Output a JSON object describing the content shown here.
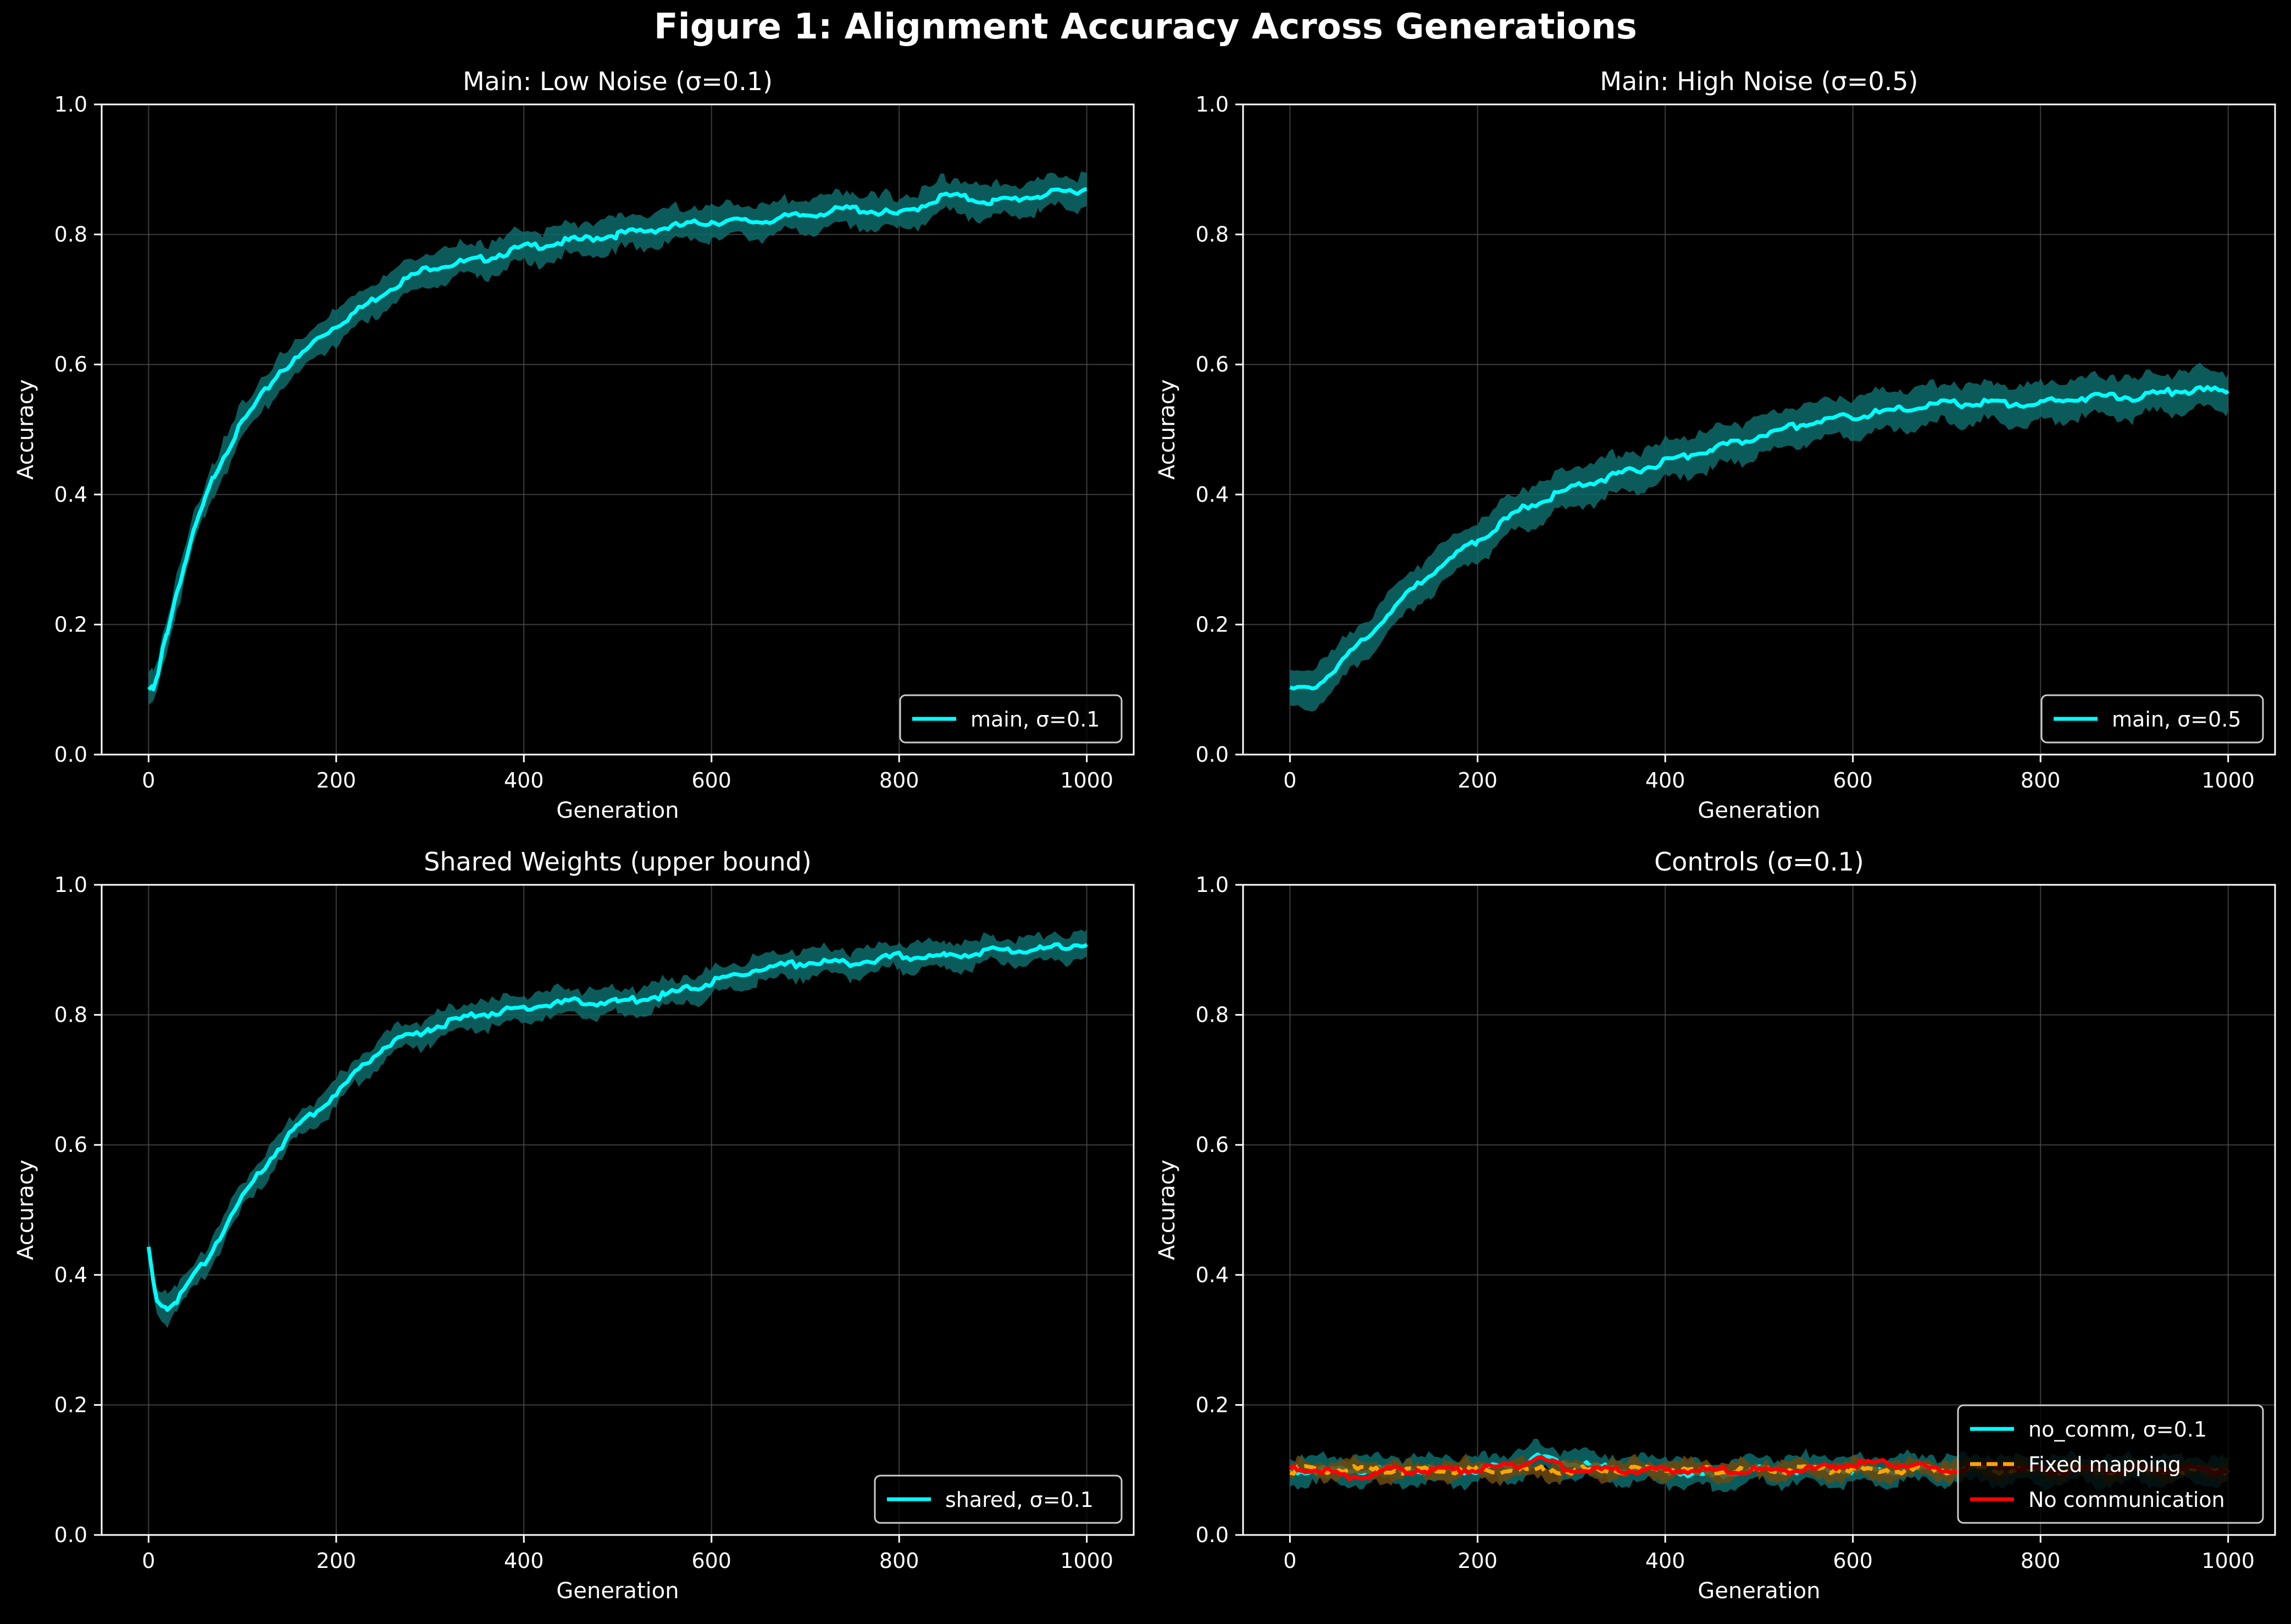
{
  "figure": {
    "title": "Figure 1: Alignment Accuracy Across Generations",
    "background": "#000000",
    "grid_color": "#555555"
  },
  "chart_data": [
    {
      "type": "line",
      "title": "Main: Low Noise (σ=0.1)",
      "xlabel": "Generation",
      "ylabel": "Accuracy",
      "xlim": [
        -50,
        1050
      ],
      "ylim": [
        0,
        1.0
      ],
      "xticks": [
        0,
        200,
        400,
        600,
        800,
        1000
      ],
      "yticks": [
        0.0,
        0.2,
        0.4,
        0.6,
        0.8,
        1.0
      ],
      "grid": true,
      "legend_position": "lower-right",
      "series": [
        {
          "name": "main, σ=0.1",
          "color": "#00ffff",
          "band_color": "#0e6b6b",
          "style": "solid",
          "x": [
            0,
            5,
            10,
            15,
            20,
            30,
            40,
            50,
            60,
            70,
            80,
            100,
            120,
            140,
            160,
            180,
            200,
            230,
            260,
            300,
            350,
            400,
            450,
            500,
            550,
            600,
            650,
            700,
            750,
            800,
            850,
            900,
            950,
            1000
          ],
          "y": [
            0.1,
            0.1,
            0.12,
            0.16,
            0.19,
            0.25,
            0.3,
            0.35,
            0.39,
            0.43,
            0.46,
            0.51,
            0.55,
            0.59,
            0.61,
            0.64,
            0.66,
            0.69,
            0.72,
            0.75,
            0.76,
            0.78,
            0.79,
            0.8,
            0.81,
            0.82,
            0.82,
            0.83,
            0.84,
            0.83,
            0.86,
            0.85,
            0.86,
            0.87
          ],
          "band": 0.025
        }
      ]
    },
    {
      "type": "line",
      "title": "Main: High Noise (σ=0.5)",
      "xlabel": "Generation",
      "ylabel": "Accuracy",
      "xlim": [
        -50,
        1050
      ],
      "ylim": [
        0,
        1.0
      ],
      "xticks": [
        0,
        200,
        400,
        600,
        800,
        1000
      ],
      "yticks": [
        0.0,
        0.2,
        0.4,
        0.6,
        0.8,
        1.0
      ],
      "grid": true,
      "legend_position": "lower-right",
      "series": [
        {
          "name": "main, σ=0.5",
          "color": "#00ffff",
          "band_color": "#0e6b6b",
          "style": "solid",
          "x": [
            0,
            20,
            40,
            60,
            80,
            100,
            150,
            200,
            250,
            300,
            350,
            400,
            450,
            500,
            550,
            600,
            650,
            700,
            750,
            800,
            850,
            900,
            950,
            1000
          ],
          "y": [
            0.1,
            0.1,
            0.12,
            0.15,
            0.18,
            0.21,
            0.28,
            0.33,
            0.38,
            0.41,
            0.43,
            0.45,
            0.47,
            0.49,
            0.51,
            0.52,
            0.53,
            0.54,
            0.54,
            0.54,
            0.55,
            0.55,
            0.56,
            0.56
          ],
          "band": 0.03
        }
      ]
    },
    {
      "type": "line",
      "title": "Shared Weights (upper bound)",
      "xlabel": "Generation",
      "ylabel": "Accuracy",
      "xlim": [
        -50,
        1050
      ],
      "ylim": [
        0,
        1.0
      ],
      "xticks": [
        0,
        200,
        400,
        600,
        800,
        1000
      ],
      "yticks": [
        0.0,
        0.2,
        0.4,
        0.6,
        0.8,
        1.0
      ],
      "grid": true,
      "legend_position": "lower-right",
      "series": [
        {
          "name": "shared, σ=0.1",
          "color": "#00ffff",
          "band_color": "#0e6b6b",
          "style": "solid",
          "x": [
            0,
            5,
            10,
            20,
            30,
            40,
            60,
            80,
            100,
            130,
            160,
            200,
            250,
            300,
            350,
            400,
            450,
            500,
            550,
            600,
            650,
            700,
            750,
            800,
            850,
            900,
            950,
            1000
          ],
          "y": [
            0.44,
            0.39,
            0.36,
            0.35,
            0.36,
            0.38,
            0.42,
            0.47,
            0.52,
            0.58,
            0.63,
            0.68,
            0.75,
            0.78,
            0.8,
            0.81,
            0.82,
            0.82,
            0.83,
            0.85,
            0.87,
            0.88,
            0.88,
            0.89,
            0.89,
            0.9,
            0.9,
            0.91
          ],
          "band": 0.02
        }
      ]
    },
    {
      "type": "line",
      "title": "Controls (σ=0.1)",
      "xlabel": "Generation",
      "ylabel": "Accuracy",
      "xlim": [
        -50,
        1050
      ],
      "ylim": [
        0,
        1.0
      ],
      "xticks": [
        0,
        200,
        400,
        600,
        800,
        1000
      ],
      "yticks": [
        0.0,
        0.2,
        0.4,
        0.6,
        0.8,
        1.0
      ],
      "grid": true,
      "legend_position": "lower-right",
      "series": [
        {
          "name": "no_comm, σ=0.1",
          "color": "#00ffff",
          "band_color": "#0e6b6b",
          "style": "solid",
          "x": [
            0,
            50,
            100,
            150,
            200,
            250,
            260,
            300,
            350,
            400,
            450,
            500,
            550,
            600,
            650,
            700,
            750,
            800,
            850,
            900,
            950,
            1000
          ],
          "y": [
            0.1,
            0.1,
            0.1,
            0.1,
            0.1,
            0.11,
            0.12,
            0.11,
            0.1,
            0.1,
            0.09,
            0.1,
            0.1,
            0.1,
            0.1,
            0.1,
            0.1,
            0.1,
            0.1,
            0.1,
            0.1,
            0.1
          ],
          "band": 0.02
        },
        {
          "name": "Fixed mapping",
          "color": "#ffa500",
          "band_color": "#6b4a10",
          "style": "dashed",
          "x": [
            0,
            100,
            200,
            300,
            400,
            500,
            600,
            700,
            800,
            900,
            1000
          ],
          "y": [
            0.1,
            0.1,
            0.1,
            0.1,
            0.1,
            0.1,
            0.1,
            0.1,
            0.1,
            0.1,
            0.1
          ],
          "band": 0.012
        },
        {
          "name": "No communication",
          "color": "#ff0000",
          "band_color": "#6b0000",
          "style": "solid",
          "x": [
            0,
            30,
            60,
            80,
            100,
            150,
            200,
            250,
            260,
            280,
            300,
            350,
            400,
            450,
            500,
            550,
            600,
            650,
            700,
            750,
            800,
            850,
            900,
            950,
            1000
          ],
          "y": [
            0.1,
            0.1,
            0.09,
            0.09,
            0.1,
            0.1,
            0.1,
            0.11,
            0.12,
            0.11,
            0.1,
            0.1,
            0.1,
            0.1,
            0.1,
            0.1,
            0.11,
            0.11,
            0.1,
            0.11,
            0.1,
            0.1,
            0.1,
            0.1,
            0.1
          ],
          "band": 0.0
        }
      ]
    }
  ]
}
